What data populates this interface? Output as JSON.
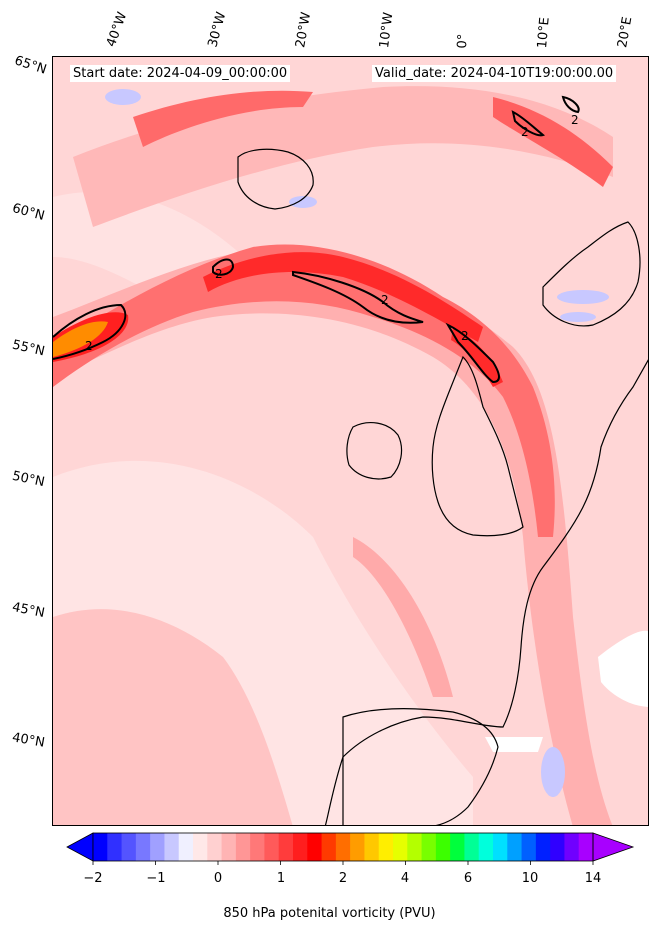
{
  "header": {
    "start_date": "Start date: 2024-04-09_00:00:00",
    "valid_date": "Valid_date: 2024-04-10T19:00:00.00"
  },
  "longitude_labels": [
    "40°W",
    "30°W",
    "20°W",
    "10°W",
    "0°",
    "10°E",
    "20°E"
  ],
  "latitude_labels": [
    "65°N",
    "60°N",
    "55°N",
    "50°N",
    "45°N",
    "40°N"
  ],
  "contour_labels": [
    "2",
    "2",
    "2",
    "2",
    "2",
    "2"
  ],
  "colorbar": {
    "label": "850 hPa potenital vorticity (PVU)",
    "ticks": [
      "−2",
      "−1",
      "0",
      "1",
      "2",
      "4",
      "6",
      "10",
      "14"
    ],
    "colors": [
      "#0000ff",
      "#3030ff",
      "#5454ff",
      "#7878ff",
      "#a0a0ff",
      "#c8c8ff",
      "#f0f0ff",
      "#ffe8e8",
      "#ffd0d0",
      "#ffb4b4",
      "#ff9696",
      "#ff7878",
      "#ff5a5a",
      "#ff3c3c",
      "#ff1e1e",
      "#ff0000",
      "#ff3a00",
      "#ff6e00",
      "#ff9c00",
      "#ffc800",
      "#ffee00",
      "#e6ff00",
      "#b4ff00",
      "#78ff00",
      "#3cff00",
      "#00ff3c",
      "#00ff96",
      "#00ffdc",
      "#00e0ff",
      "#00a0ff",
      "#0060ff",
      "#0020ff",
      "#3000ff",
      "#7000ff",
      "#a800ff"
    ],
    "extend": "both"
  },
  "colors": {
    "background": "#ffd6d6",
    "light": "#ffc0c0",
    "medium": "#ff9a9a",
    "strong": "#ff5050",
    "peak": "#ff1a1a",
    "extreme": "#ff8c00",
    "negative": "#c8c8ff",
    "coastline": "#000000"
  }
}
